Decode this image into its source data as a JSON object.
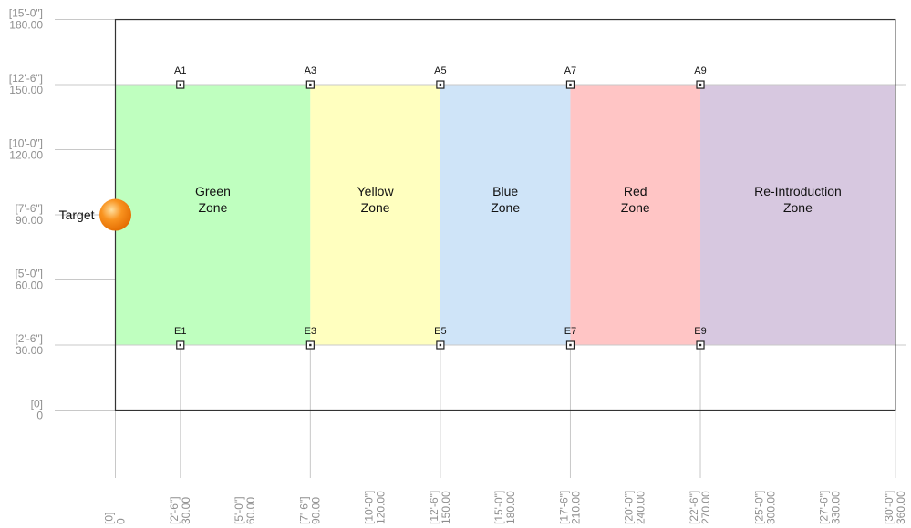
{
  "y_axis": [
    {
      "ft": "[15'-0\"]",
      "in": "180.00",
      "value": 180
    },
    {
      "ft": "[12'-6\"]",
      "in": "150.00",
      "value": 150
    },
    {
      "ft": "[10'-0\"]",
      "in": "120.00",
      "value": 120
    },
    {
      "ft": "[7'-6\"]",
      "in": "90.00",
      "value": 90
    },
    {
      "ft": "[5'-0\"]",
      "in": "60.00",
      "value": 60
    },
    {
      "ft": "[2'-6\"]",
      "in": "30.00",
      "value": 30
    },
    {
      "ft": "[0]",
      "in": "0",
      "value": 0
    }
  ],
  "x_axis": [
    {
      "ft": "[0]",
      "in": "0",
      "value": 0
    },
    {
      "ft": "[2'-6\"]",
      "in": "30.00",
      "value": 30
    },
    {
      "ft": "[5'-0\"]",
      "in": "60.00",
      "value": 60
    },
    {
      "ft": "[7'-6\"]",
      "in": "90.00",
      "value": 90
    },
    {
      "ft": "[10'-0\"]",
      "in": "120.00",
      "value": 120
    },
    {
      "ft": "[12'-6\"]",
      "in": "150.00",
      "value": 150
    },
    {
      "ft": "[15'-0\"]",
      "in": "180.00",
      "value": 180
    },
    {
      "ft": "[17'-6\"]",
      "in": "210.00",
      "value": 210
    },
    {
      "ft": "[20'-0\"]",
      "in": "240.00",
      "value": 240
    },
    {
      "ft": "[22'-6\"]",
      "in": "270.00",
      "value": 270
    },
    {
      "ft": "[25'-0\"]",
      "in": "300.00",
      "value": 300
    },
    {
      "ft": "[27'-6\"]",
      "in": "330.00",
      "value": 330
    },
    {
      "ft": "[30'-0\"]",
      "in": "360.00",
      "value": 360
    }
  ],
  "field": {
    "x_range": [
      0,
      360
    ],
    "y_range": [
      0,
      180
    ]
  },
  "zones": [
    {
      "line1": "Green",
      "line2": "Zone",
      "x_start": 0,
      "x_end": 90,
      "y_start": 30,
      "y_end": 150,
      "color": "#bfffbf"
    },
    {
      "line1": "Yellow",
      "line2": "Zone",
      "x_start": 90,
      "x_end": 150,
      "y_start": 30,
      "y_end": 150,
      "color": "#ffffbf"
    },
    {
      "line1": "Blue",
      "line2": "Zone",
      "x_start": 150,
      "x_end": 210,
      "y_start": 30,
      "y_end": 150,
      "color": "#cfe4f8"
    },
    {
      "line1": "Red",
      "line2": "Zone",
      "x_start": 210,
      "x_end": 270,
      "y_start": 30,
      "y_end": 150,
      "color": "#ffc5c5"
    },
    {
      "line1": "Re-Introduction",
      "line2": "Zone",
      "x_start": 270,
      "x_end": 360,
      "y_start": 30,
      "y_end": 150,
      "color": "#d7c8e0"
    }
  ],
  "points": [
    {
      "label": "A1",
      "x": 30,
      "y": 150
    },
    {
      "label": "A3",
      "x": 90,
      "y": 150
    },
    {
      "label": "A5",
      "x": 150,
      "y": 150
    },
    {
      "label": "A7",
      "x": 210,
      "y": 150
    },
    {
      "label": "A9",
      "x": 270,
      "y": 150
    },
    {
      "label": "E1",
      "x": 30,
      "y": 30
    },
    {
      "label": "E3",
      "x": 90,
      "y": 30
    },
    {
      "label": "E5",
      "x": 150,
      "y": 30
    },
    {
      "label": "E7",
      "x": 210,
      "y": 30
    },
    {
      "label": "E9",
      "x": 270,
      "y": 30
    }
  ],
  "target": {
    "label": "Target",
    "x": 0,
    "y": 90,
    "color": "#f6861d"
  }
}
